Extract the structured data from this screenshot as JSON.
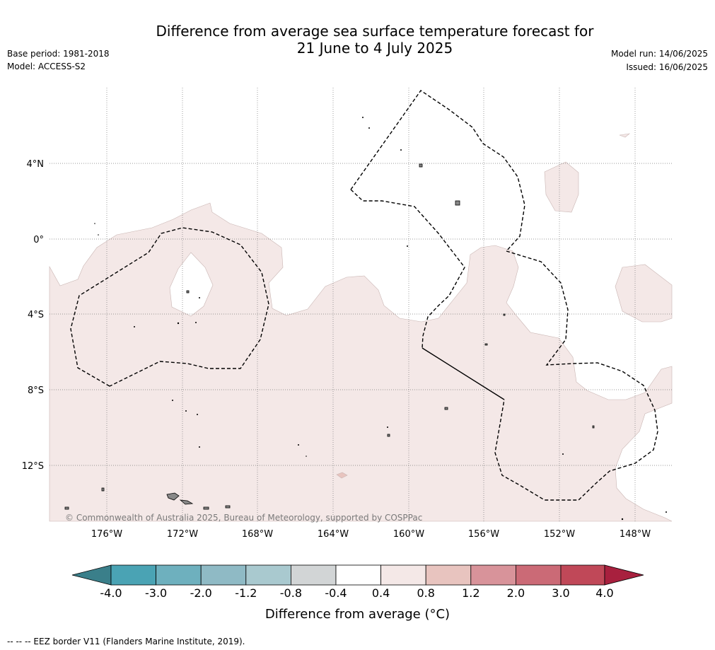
{
  "header": {
    "title_line1": "Difference from average sea surface temperature forecast for",
    "title_line2": "21 June to 4 July 2025",
    "base_period": "Base period: 1981-2018",
    "model": "Model: ACCESS-S2",
    "model_run": "Model run: 14/06/2025",
    "issued": "Issued: 16/06/2025"
  },
  "map": {
    "lat_labels": [
      "4°N",
      "0°",
      "4°S",
      "8°S",
      "12°S"
    ],
    "lon_labels": [
      "176°W",
      "172°W",
      "168°W",
      "164°W",
      "160°W",
      "156°W",
      "152°W",
      "148°W"
    ],
    "copyright": "© Commonwealth of Australia 2025, Bureau of Meteorology, supported by COSPPac",
    "colors": {
      "band_0_4_0_8": "#f4e8e7",
      "land": "#888888",
      "eez_border": "#000000"
    }
  },
  "colorbar": {
    "ticks": [
      "-4.0",
      "-3.0",
      "-2.0",
      "-1.2",
      "-0.8",
      "-0.4",
      "0.4",
      "0.8",
      "1.2",
      "2.0",
      "3.0",
      "4.0"
    ],
    "colors": [
      "#3a7f8a",
      "#4aa3b4",
      "#6eb0be",
      "#8fbac5",
      "#a9c9cf",
      "#d2d5d6",
      "#ffffff",
      "#f4e8e7",
      "#e8c4bf",
      "#d8939a",
      "#cb6a76",
      "#c04858",
      "#a8203e"
    ],
    "label": "Difference from average (°C)"
  },
  "footer": {
    "eez_note": "--  --  -- EEZ border V11 (Flanders Marine Institute, 2019)."
  }
}
